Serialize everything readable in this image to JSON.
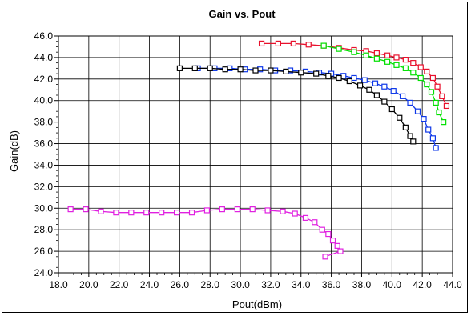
{
  "chart_data": {
    "type": "line",
    "title": "Gain vs. Pout",
    "xlabel": "Pout(dBm)",
    "ylabel": "Gain(dB)",
    "xlim": [
      18.0,
      44.0
    ],
    "ylim": [
      24.0,
      46.0
    ],
    "x_ticks": [
      "18.0",
      "20.0",
      "22.0",
      "24.0",
      "26.0",
      "28.0",
      "30.0",
      "32.0",
      "34.0",
      "36.0",
      "38.0",
      "40.0",
      "42.0",
      "44.0"
    ],
    "y_ticks": [
      "24.0",
      "26.0",
      "28.0",
      "30.0",
      "32.0",
      "34.0",
      "36.0",
      "38.0",
      "40.0",
      "42.0",
      "44.0",
      "46.0"
    ],
    "grid": true,
    "marker": "square",
    "series": [
      {
        "color": "#e8102c",
        "points": [
          [
            31.4,
            45.3
          ],
          [
            32.5,
            45.3
          ],
          [
            33.5,
            45.3
          ],
          [
            34.5,
            45.2
          ],
          [
            35.5,
            45.1
          ],
          [
            36.5,
            44.9
          ],
          [
            37.5,
            44.7
          ],
          [
            38.3,
            44.6
          ],
          [
            39.0,
            44.4
          ],
          [
            39.7,
            44.2
          ],
          [
            40.3,
            44.0
          ],
          [
            40.9,
            43.8
          ],
          [
            41.4,
            43.5
          ],
          [
            41.9,
            43.1
          ],
          [
            42.3,
            42.7
          ],
          [
            42.7,
            42.1
          ],
          [
            43.0,
            41.3
          ],
          [
            43.3,
            40.4
          ],
          [
            43.6,
            39.5
          ]
        ]
      },
      {
        "color": "#00e000",
        "points": [
          [
            35.5,
            45.1
          ],
          [
            36.5,
            44.8
          ],
          [
            37.5,
            44.5
          ],
          [
            38.3,
            44.2
          ],
          [
            39.0,
            43.9
          ],
          [
            39.7,
            43.6
          ],
          [
            40.3,
            43.3
          ],
          [
            40.9,
            43.0
          ],
          [
            41.4,
            42.6
          ],
          [
            41.9,
            42.1
          ],
          [
            42.3,
            41.5
          ],
          [
            42.6,
            40.8
          ],
          [
            42.9,
            39.8
          ],
          [
            43.1,
            38.9
          ],
          [
            43.4,
            38.0
          ]
        ]
      },
      {
        "color": "#0e38e8",
        "points": [
          [
            27.2,
            43.0
          ],
          [
            28.3,
            43.0
          ],
          [
            29.3,
            43.0
          ],
          [
            30.3,
            42.9
          ],
          [
            31.3,
            42.9
          ],
          [
            32.3,
            42.8
          ],
          [
            33.3,
            42.8
          ],
          [
            34.3,
            42.7
          ],
          [
            35.2,
            42.6
          ],
          [
            36.0,
            42.5
          ],
          [
            36.8,
            42.3
          ],
          [
            37.5,
            42.1
          ],
          [
            38.2,
            41.9
          ],
          [
            38.9,
            41.6
          ],
          [
            39.5,
            41.3
          ],
          [
            40.1,
            40.9
          ],
          [
            40.7,
            40.4
          ],
          [
            41.2,
            39.8
          ],
          [
            41.7,
            39.0
          ],
          [
            42.1,
            38.3
          ],
          [
            42.4,
            37.3
          ],
          [
            42.7,
            36.5
          ],
          [
            42.9,
            35.6
          ]
        ]
      },
      {
        "color": "#000000",
        "points": [
          [
            26.0,
            43.0
          ],
          [
            27.0,
            43.0
          ],
          [
            28.0,
            43.0
          ],
          [
            29.0,
            42.9
          ],
          [
            30.0,
            42.9
          ],
          [
            31.0,
            42.8
          ],
          [
            32.0,
            42.8
          ],
          [
            33.0,
            42.7
          ],
          [
            34.0,
            42.6
          ],
          [
            35.0,
            42.5
          ],
          [
            35.8,
            42.3
          ],
          [
            36.5,
            42.1
          ],
          [
            37.2,
            41.8
          ],
          [
            37.9,
            41.4
          ],
          [
            38.5,
            41.0
          ],
          [
            39.0,
            40.5
          ],
          [
            39.5,
            39.9
          ],
          [
            40.0,
            39.2
          ],
          [
            40.5,
            38.4
          ],
          [
            40.9,
            37.5
          ],
          [
            41.2,
            36.7
          ],
          [
            41.4,
            36.2
          ]
        ]
      },
      {
        "color": "#e020e0",
        "points": [
          [
            18.8,
            29.9
          ],
          [
            19.8,
            29.9
          ],
          [
            20.8,
            29.7
          ],
          [
            21.8,
            29.6
          ],
          [
            22.8,
            29.6
          ],
          [
            23.8,
            29.6
          ],
          [
            24.8,
            29.6
          ],
          [
            25.8,
            29.6
          ],
          [
            26.8,
            29.6
          ],
          [
            27.8,
            29.8
          ],
          [
            28.8,
            29.9
          ],
          [
            29.8,
            29.9
          ],
          [
            30.8,
            29.9
          ],
          [
            31.8,
            29.8
          ],
          [
            32.8,
            29.7
          ],
          [
            33.6,
            29.5
          ],
          [
            34.3,
            29.1
          ],
          [
            34.9,
            28.7
          ],
          [
            35.4,
            28.0
          ],
          [
            35.8,
            27.6
          ],
          [
            36.1,
            27.0
          ],
          [
            36.4,
            26.5
          ],
          [
            36.6,
            26.0
          ],
          [
            35.6,
            25.5
          ]
        ]
      }
    ]
  }
}
